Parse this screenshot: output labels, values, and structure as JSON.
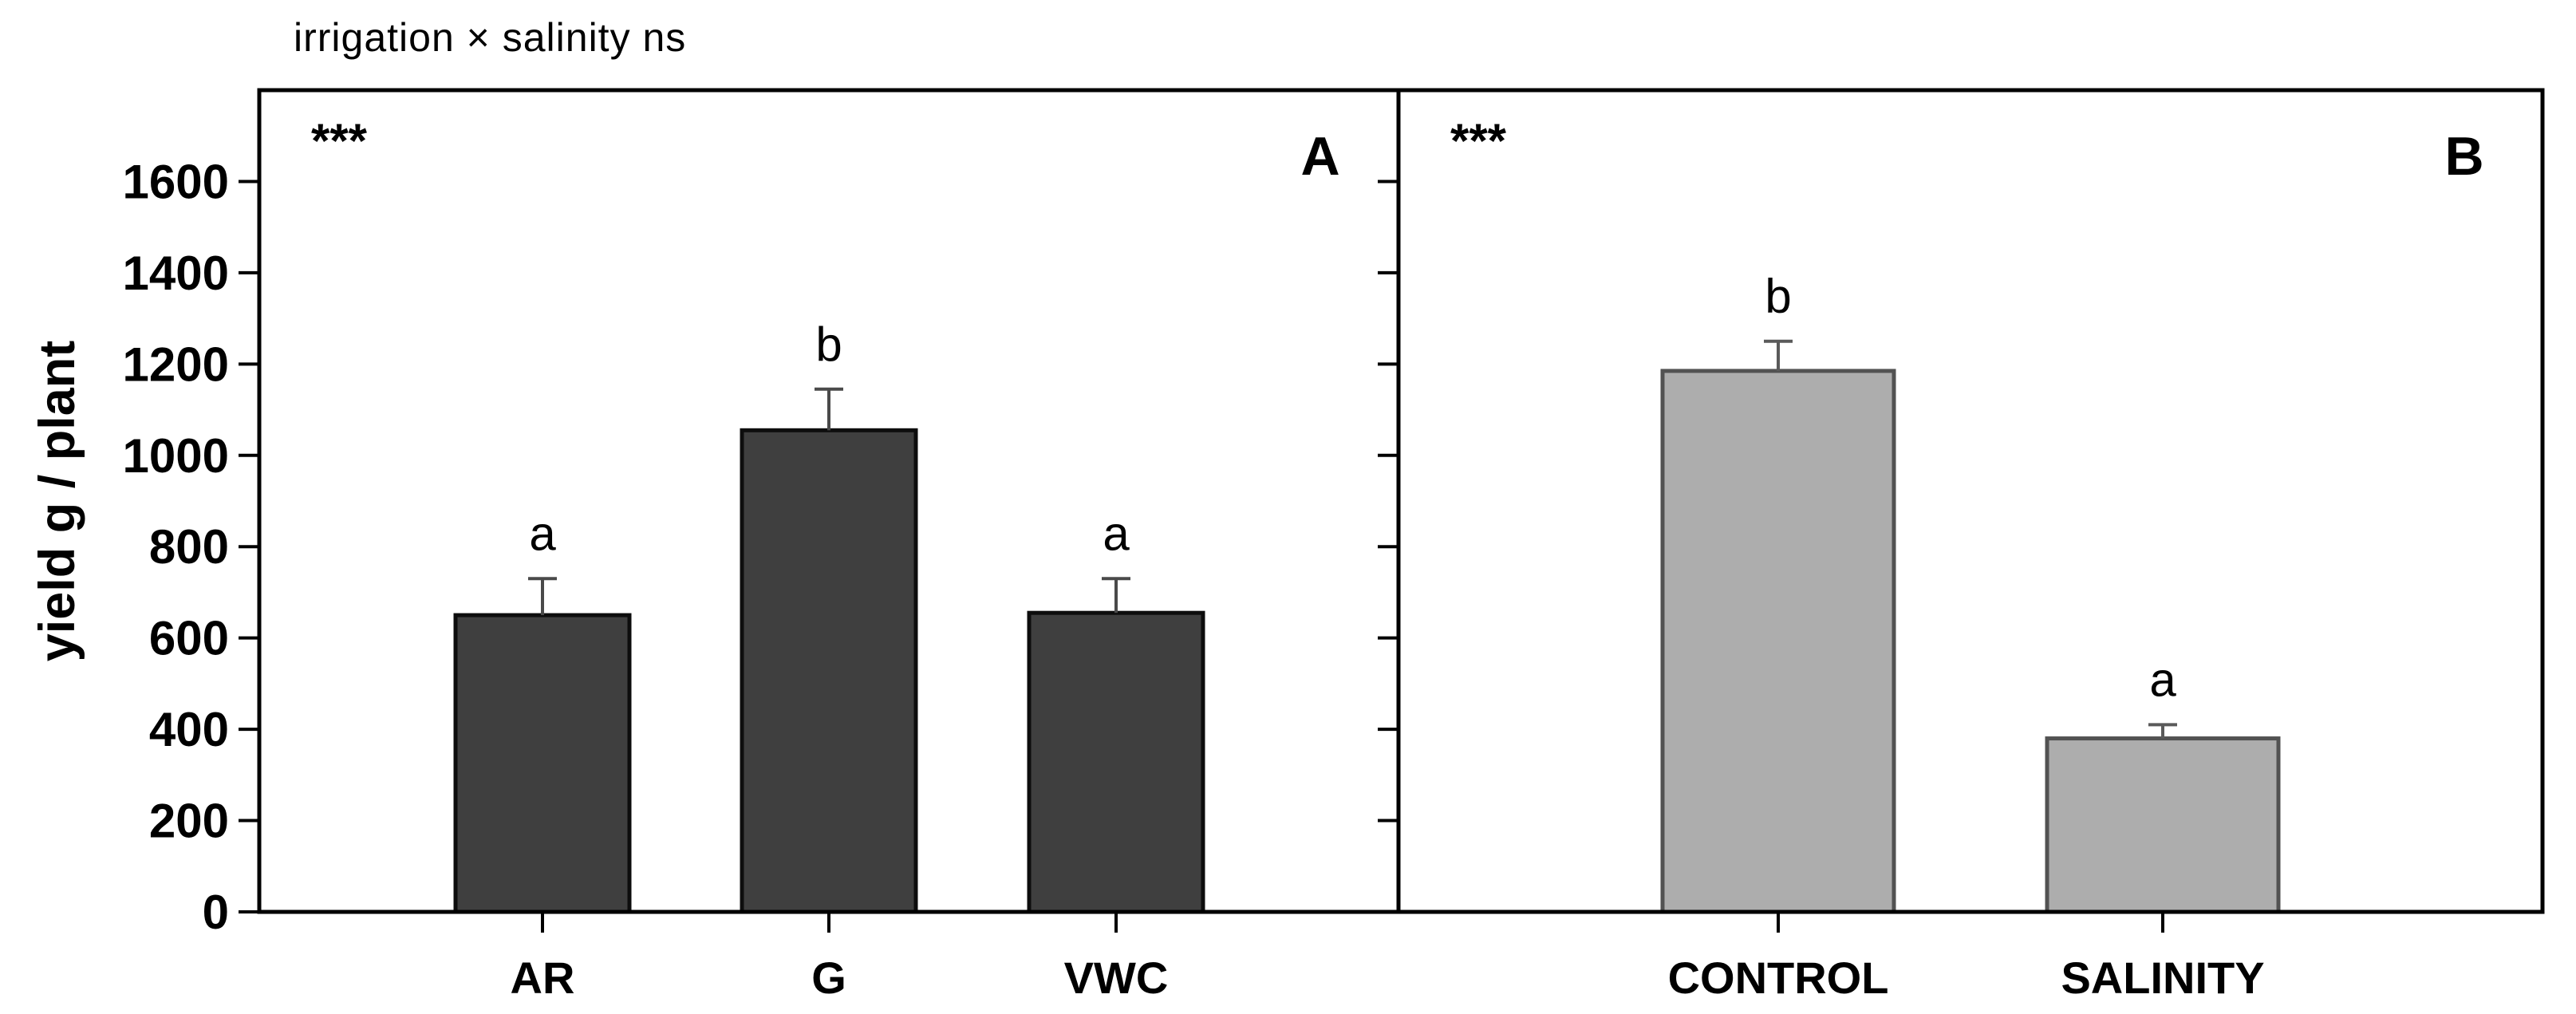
{
  "figure": {
    "title": "irrigation × salinity ns",
    "ylabel": "yield g / plant"
  },
  "chart_data": [
    {
      "type": "bar",
      "panel_label": "A",
      "significance": "***",
      "categories": [
        "AR",
        "G",
        "VWC"
      ],
      "values": [
        650,
        1055,
        655
      ],
      "errors_plus": [
        80,
        90,
        75
      ],
      "letters": [
        "a",
        "b",
        "a"
      ],
      "ylabel": "yield g / plant",
      "ylim": [
        0,
        1800
      ],
      "yticks": [
        0,
        200,
        400,
        600,
        800,
        1000,
        1200,
        1400,
        1600
      ],
      "ytick_labels_visible": true,
      "grid": false,
      "bar_fill": "#3f3f3f",
      "bar_border": "#0d0d0d",
      "error_color": "#4a4a4a"
    },
    {
      "type": "bar",
      "panel_label": "B",
      "significance": "***",
      "categories": [
        "CONTROL",
        "SALINITY"
      ],
      "values": [
        1185,
        380
      ],
      "errors_plus": [
        65,
        30
      ],
      "letters": [
        "b",
        "a"
      ],
      "ylim": [
        0,
        1800
      ],
      "yticks": [
        0,
        200,
        400,
        600,
        800,
        1000,
        1200,
        1400,
        1600
      ],
      "ytick_labels_visible": false,
      "grid": false,
      "bar_fill": "#adadad",
      "bar_border": "#525252",
      "error_color": "#5a5a5a"
    }
  ],
  "colors": {
    "frame": "#000000",
    "text": "#000000",
    "background": "#ffffff"
  }
}
